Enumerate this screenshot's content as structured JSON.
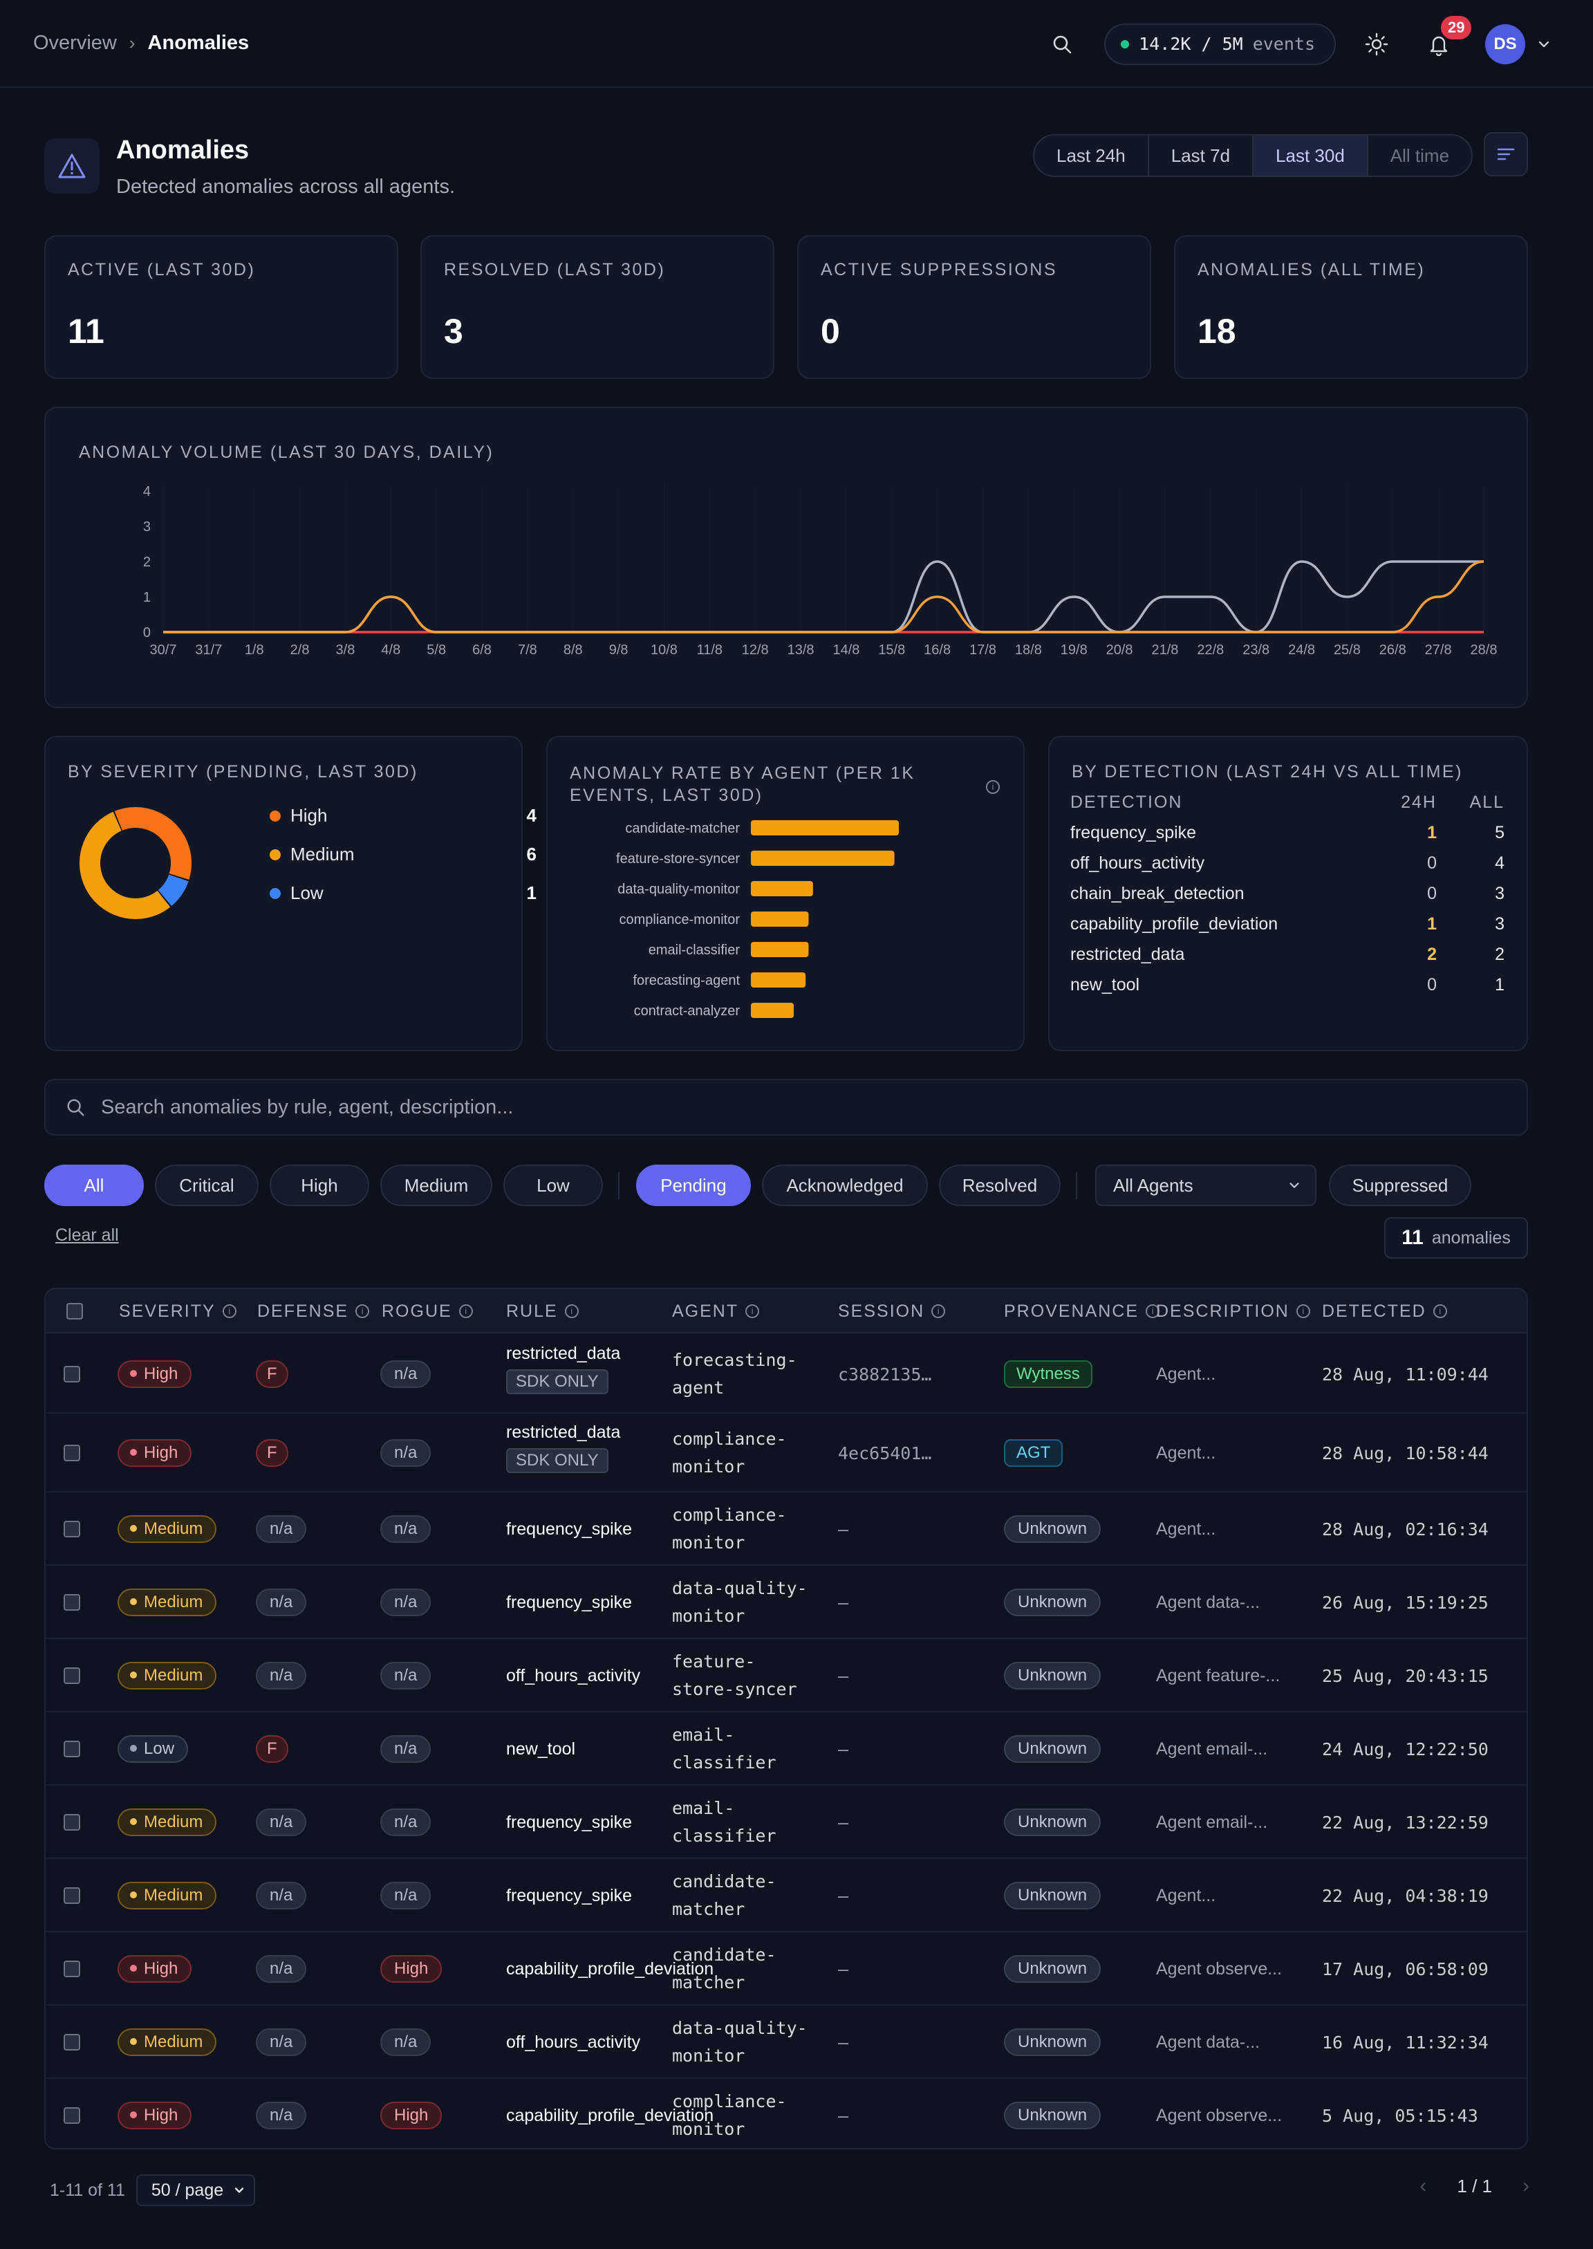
{
  "breadcrumb": {
    "parent": "Overview",
    "current": "Anomalies"
  },
  "topbar": {
    "events_count": "14.2K / 5M",
    "events_label": "events",
    "notifications": "29",
    "avatar": "DS"
  },
  "header": {
    "title": "Anomalies",
    "subtitle": "Detected anomalies across all agents."
  },
  "time_ranges": [
    {
      "label": "Last 24h"
    },
    {
      "label": "Last 7d"
    },
    {
      "label": "Last 30d",
      "active": true
    },
    {
      "label": "All time",
      "disabled": true
    }
  ],
  "stats": [
    {
      "label": "ACTIVE (LAST 30D)",
      "value": "11"
    },
    {
      "label": "RESOLVED (LAST 30D)",
      "value": "3"
    },
    {
      "label": "ACTIVE SUPPRESSIONS",
      "value": "0"
    },
    {
      "label": "ANOMALIES (ALL TIME)",
      "value": "18"
    }
  ],
  "volume_chart": {
    "title": "ANOMALY VOLUME (LAST 30 DAYS, DAILY)"
  },
  "chart_data": [
    {
      "type": "line",
      "title": "ANOMALY VOLUME (LAST 30 DAYS, DAILY)",
      "x": [
        "30/7",
        "31/7",
        "1/8",
        "2/8",
        "3/8",
        "4/8",
        "5/8",
        "6/8",
        "7/8",
        "8/8",
        "9/8",
        "10/8",
        "11/8",
        "12/8",
        "13/8",
        "14/8",
        "15/8",
        "16/8",
        "17/8",
        "18/8",
        "19/8",
        "20/8",
        "21/8",
        "22/8",
        "23/8",
        "24/8",
        "25/8",
        "26/8",
        "27/8",
        "28/8"
      ],
      "series": [
        {
          "color": "#aeb4c6",
          "values": [
            0,
            0,
            0,
            0,
            0,
            1,
            0,
            0,
            0,
            0,
            0,
            0,
            0,
            0,
            0,
            0,
            0,
            2,
            0,
            0,
            1,
            0,
            1,
            1,
            0,
            2,
            1,
            2,
            2,
            2
          ]
        },
        {
          "color": "#f59e3c",
          "values": [
            0,
            0,
            0,
            0,
            0,
            1,
            0,
            0,
            0,
            0,
            0,
            0,
            0,
            0,
            0,
            0,
            0,
            1,
            0,
            0,
            0,
            0,
            0,
            0,
            0,
            0,
            0,
            0,
            1,
            2
          ]
        },
        {
          "color": "#ef4444",
          "values": [
            0,
            0,
            0,
            0,
            0,
            0,
            0,
            0,
            0,
            0,
            0,
            0,
            0,
            0,
            0,
            0,
            0,
            0,
            0,
            0,
            0,
            0,
            0,
            0,
            0,
            0,
            0,
            0,
            0,
            0
          ]
        }
      ],
      "yticks": [
        0,
        1,
        2,
        3,
        4
      ],
      "ylim": [
        0,
        4
      ]
    },
    {
      "type": "pie",
      "title": "BY SEVERITY (PENDING, LAST 30D)",
      "categories": [
        "High",
        "Medium",
        "Low"
      ],
      "values": [
        4,
        6,
        1
      ],
      "colors": [
        "#f97316",
        "#f59e0b",
        "#3b82f6"
      ]
    },
    {
      "type": "bar",
      "title": "ANOMALY RATE BY AGENT (PER 1K EVENTS, LAST 30D)",
      "categories": [
        "candidate-matcher",
        "feature-store-syncer",
        "data-quality-monitor",
        "compliance-monitor",
        "email-classifier",
        "forecasting-agent",
        "contract-analyzer"
      ],
      "values": [
        1.0,
        0.97,
        0.42,
        0.39,
        0.39,
        0.37,
        0.29
      ],
      "color": "#f59e0b"
    }
  ],
  "severity": {
    "title": "BY SEVERITY (PENDING, LAST 30D)",
    "items": [
      {
        "name": "High",
        "count": "4",
        "color": "#f97316"
      },
      {
        "name": "Medium",
        "count": "6",
        "color": "#f59e0b"
      },
      {
        "name": "Low",
        "count": "1",
        "color": "#3b82f6"
      }
    ]
  },
  "rate": {
    "title_1": "ANOMALY RATE BY AGENT (PER 1K",
    "title_2": "EVENTS, LAST 30D)"
  },
  "detection": {
    "title": "BY DETECTION (LAST 24H VS ALL TIME)",
    "col_name": "DETECTION",
    "col_24h": "24H",
    "col_all": "ALL",
    "rows": [
      {
        "name": "frequency_spike",
        "h24": "1",
        "all": "5"
      },
      {
        "name": "off_hours_activity",
        "h24": "0",
        "all": "4"
      },
      {
        "name": "chain_break_detection",
        "h24": "0",
        "all": "3"
      },
      {
        "name": "capability_profile_deviation",
        "h24": "1",
        "all": "3"
      },
      {
        "name": "restricted_data",
        "h24": "2",
        "all": "2"
      },
      {
        "name": "new_tool",
        "h24": "0",
        "all": "1"
      }
    ]
  },
  "search": {
    "placeholder": "Search anomalies by rule, agent, description..."
  },
  "filters": {
    "severity": [
      "All",
      "Critical",
      "High",
      "Medium",
      "Low"
    ],
    "status": [
      "Pending",
      "Acknowledged",
      "Resolved"
    ],
    "agent_select": "All Agents",
    "suppressed": "Suppressed",
    "clear_all": "Clear all",
    "count": "11",
    "count_label": "anomalies"
  },
  "table": {
    "columns": [
      "SEVERITY",
      "DEFENSE",
      "ROGUE",
      "RULE",
      "AGENT",
      "SESSION",
      "PROVENANCE",
      "DESCRIPTION",
      "DETECTED"
    ],
    "rows": [
      {
        "severity": "High",
        "defense": "F",
        "rogue": "n/a",
        "rule": "restricted_data",
        "sdk": "SDK ONLY",
        "agent_1": "forecasting-",
        "agent_2": "agent",
        "session": "c3882135…",
        "provenance": "Wytness",
        "description": "Agent...",
        "detected": "28 Aug, 11:09:44"
      },
      {
        "severity": "High",
        "defense": "F",
        "rogue": "n/a",
        "rule": "restricted_data",
        "sdk": "SDK ONLY",
        "agent_1": "compliance-",
        "agent_2": "monitor",
        "session": "4ec65401…",
        "provenance": "AGT",
        "description": "Agent...",
        "detected": "28 Aug, 10:58:44"
      },
      {
        "severity": "Medium",
        "defense": "n/a",
        "rogue": "n/a",
        "rule": "frequency_spike",
        "agent_1": "compliance-",
        "agent_2": "monitor",
        "session": "—",
        "provenance": "Unknown",
        "description": "Agent...",
        "detected": "28 Aug, 02:16:34"
      },
      {
        "severity": "Medium",
        "defense": "n/a",
        "rogue": "n/a",
        "rule": "frequency_spike",
        "agent_1": "data-quality-",
        "agent_2": "monitor",
        "session": "—",
        "provenance": "Unknown",
        "description": "Agent data-...",
        "detected": "26 Aug, 15:19:25"
      },
      {
        "severity": "Medium",
        "defense": "n/a",
        "rogue": "n/a",
        "rule": "off_hours_activity",
        "agent_1": "feature-",
        "agent_2": "store-syncer",
        "session": "—",
        "provenance": "Unknown",
        "description": "Agent feature-...",
        "detected": "25 Aug, 20:43:15"
      },
      {
        "severity": "Low",
        "defense": "F",
        "rogue": "n/a",
        "rule": "new_tool",
        "agent_1": "email-",
        "agent_2": "classifier",
        "session": "—",
        "provenance": "Unknown",
        "description": "Agent email-...",
        "detected": "24 Aug, 12:22:50"
      },
      {
        "severity": "Medium",
        "defense": "n/a",
        "rogue": "n/a",
        "rule": "frequency_spike",
        "agent_1": "email-",
        "agent_2": "classifier",
        "session": "—",
        "provenance": "Unknown",
        "description": "Agent email-...",
        "detected": "22 Aug, 13:22:59"
      },
      {
        "severity": "Medium",
        "defense": "n/a",
        "rogue": "n/a",
        "rule": "frequency_spike",
        "agent_1": "candidate-",
        "agent_2": "matcher",
        "session": "—",
        "provenance": "Unknown",
        "description": "Agent...",
        "detected": "22 Aug, 04:38:19"
      },
      {
        "severity": "High",
        "defense": "n/a",
        "rogue": "High",
        "rule": "capability_profile_deviation",
        "agent_1": "candidate-",
        "agent_2": "matcher",
        "session": "—",
        "provenance": "Unknown",
        "description": "Agent observe...",
        "detected": "17 Aug, 06:58:09"
      },
      {
        "severity": "Medium",
        "defense": "n/a",
        "rogue": "n/a",
        "rule": "off_hours_activity",
        "agent_1": "data-quality-",
        "agent_2": "monitor",
        "session": "—",
        "provenance": "Unknown",
        "description": "Agent data-...",
        "detected": "16 Aug, 11:32:34"
      },
      {
        "severity": "High",
        "defense": "n/a",
        "rogue": "High",
        "rule": "capability_profile_deviation",
        "agent_1": "compliance-",
        "agent_2": "monitor",
        "session": "—",
        "provenance": "Unknown",
        "description": "Agent observe...",
        "detected": "5 Aug, 05:15:43"
      }
    ]
  },
  "pagination": {
    "range": "1-11 of 11",
    "per_page": "50 / page",
    "page": "1 / 1"
  }
}
